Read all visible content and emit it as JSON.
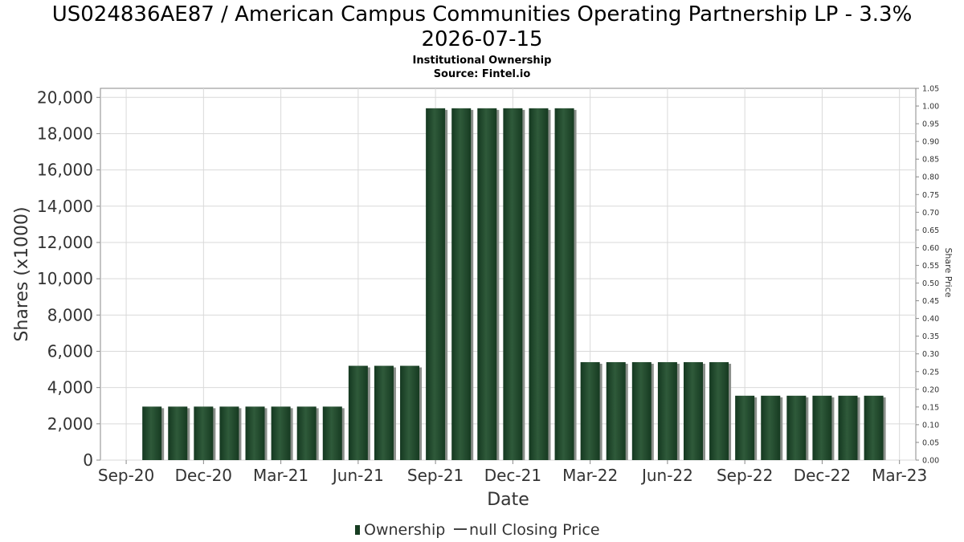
{
  "chart_data": {
    "type": "bar",
    "title_line1": "US024836AE87 / American Campus Communities Operating Partnership LP - 3.3%",
    "title_line2": "2026-07-15",
    "subtitle1": "Institutional Ownership",
    "subtitle2": "Source: Fintel.io",
    "xlabel": "Date",
    "ylabel": "Shares (x1000)",
    "y2label": "Share Price",
    "x_ticks": [
      "Sep-20",
      "Dec-20",
      "Mar-21",
      "Jun-21",
      "Sep-21",
      "Dec-21",
      "Mar-22",
      "Jun-22",
      "Sep-22",
      "Dec-22",
      "Mar-23"
    ],
    "y_ticks": [
      "0",
      "2,000",
      "4,000",
      "6,000",
      "8,000",
      "10,000",
      "12,000",
      "14,000",
      "16,000",
      "18,000",
      "20,000"
    ],
    "y2_ticks": [
      "0.00",
      "0.05",
      "0.10",
      "0.15",
      "0.20",
      "0.25",
      "0.30",
      "0.35",
      "0.40",
      "0.45",
      "0.50",
      "0.55",
      "0.60",
      "0.65",
      "0.70",
      "0.75",
      "0.80",
      "0.85",
      "0.90",
      "0.95",
      "1.00",
      "1.05"
    ],
    "ylim": [
      0,
      20500
    ],
    "y2lim": [
      0,
      1.05
    ],
    "x_range_months": [
      "2020-08-01",
      "2023-03-20"
    ],
    "grid": true,
    "legend_placement": "bottom-center",
    "legend": [
      {
        "name": "Ownership",
        "kind": "bar"
      },
      {
        "name": "null Closing Price",
        "kind": "line"
      }
    ],
    "series": [
      {
        "name": "Ownership",
        "dates": [
          "2020-10-01",
          "2020-11-01",
          "2020-12-01",
          "2021-01-01",
          "2021-02-01",
          "2021-03-01",
          "2021-04-01",
          "2021-05-01",
          "2021-06-01",
          "2021-07-01",
          "2021-08-01",
          "2021-09-01",
          "2021-10-01",
          "2021-11-01",
          "2021-12-01",
          "2022-01-01",
          "2022-02-01",
          "2022-03-01",
          "2022-04-01",
          "2022-05-01",
          "2022-06-01",
          "2022-07-01",
          "2022-08-01",
          "2022-09-01",
          "2022-10-01",
          "2022-11-01",
          "2022-12-01",
          "2023-01-01",
          "2023-02-01"
        ],
        "values": [
          2950,
          2950,
          2950,
          2950,
          2950,
          2950,
          2950,
          2950,
          5200,
          5200,
          5200,
          19400,
          19400,
          19400,
          19400,
          19400,
          19400,
          5400,
          5400,
          5400,
          5400,
          5400,
          5400,
          3550,
          3550,
          3550,
          3550,
          3550,
          3550
        ]
      }
    ],
    "colors": {
      "bar_dark": "#173d22",
      "bar_mid": "#2f5a3a",
      "bar_shadow": "#8a8f8a",
      "grid": "#d9d9d9",
      "axis": "#888888",
      "text": "#333333"
    }
  }
}
